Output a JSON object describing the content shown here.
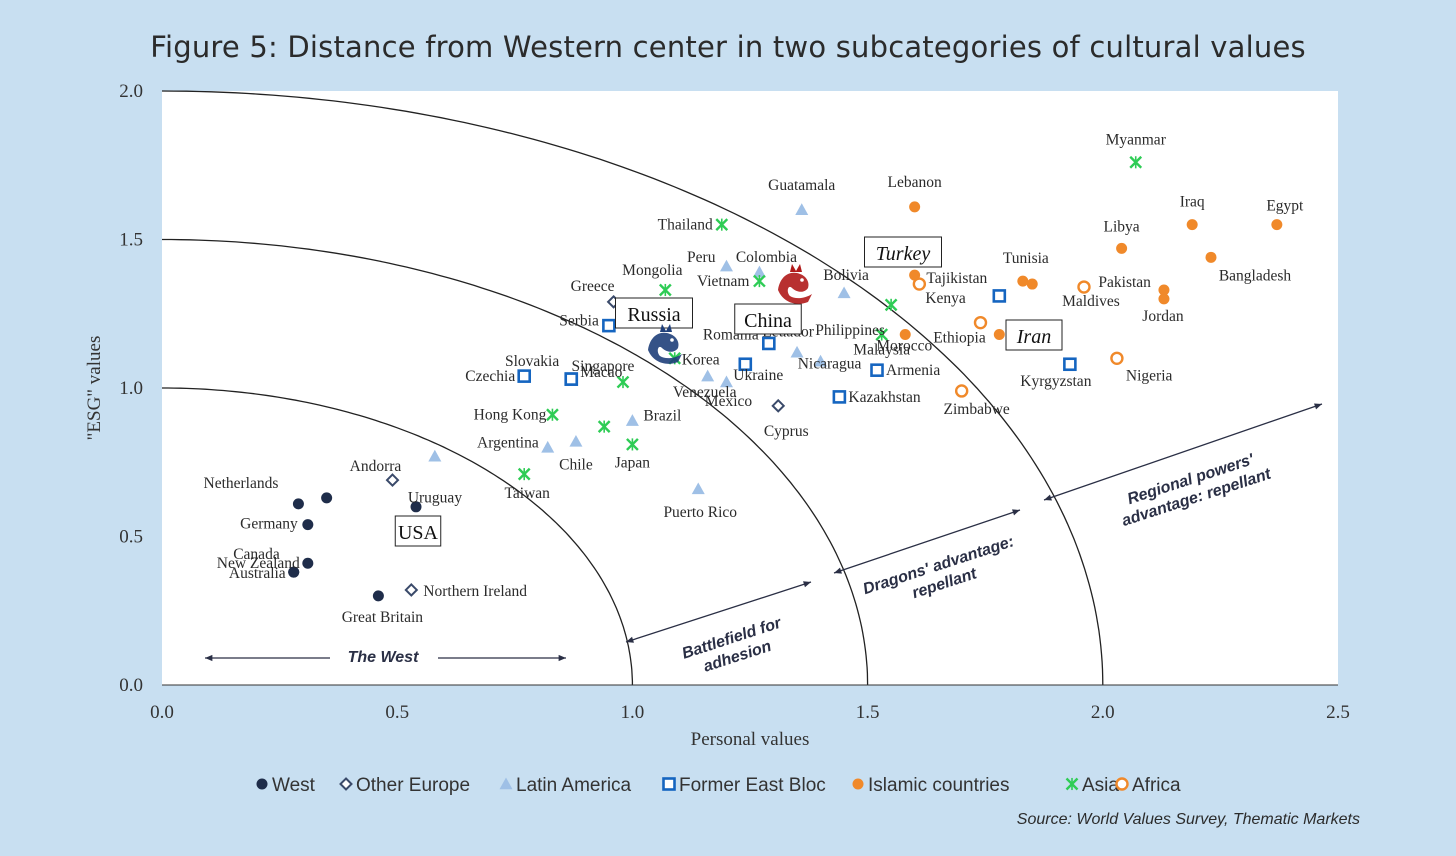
{
  "title": "Figure 5: Distance from Western center in two subcategories of cultural values",
  "source": "Source: World Values Survey, Thematic Markets",
  "colors": {
    "background": "#c8dff1",
    "plot_bg": "#ffffff",
    "west": "#1f2d4a",
    "other_europe": "#3a4a6a",
    "latin_america": "#9fc0e6",
    "former_east_bloc": "#1565c0",
    "islamic": "#f0892a",
    "asia": "#2ecc55",
    "africa": "#f0892a"
  },
  "legend": [
    {
      "key": "west",
      "label": "West",
      "marker": "filled-circle"
    },
    {
      "key": "other_europe",
      "label": "Other Europe",
      "marker": "open-diamond"
    },
    {
      "key": "latin_america",
      "label": "Latin America",
      "marker": "triangle"
    },
    {
      "key": "former_east_bloc",
      "label": "Former East Bloc",
      "marker": "open-square"
    },
    {
      "key": "islamic",
      "label": "Islamic countries",
      "marker": "filled-circle"
    },
    {
      "key": "asia",
      "label": "Asia",
      "marker": "asterisk"
    },
    {
      "key": "africa",
      "label": "Africa",
      "marker": "open-circle"
    }
  ],
  "chart_data": {
    "type": "scatter",
    "title": "Figure 5: Distance from Western center in two subcategories of cultural values",
    "xlabel": "Personal values",
    "ylabel": "\"ESG\" values",
    "xlim": [
      0,
      2.5
    ],
    "ylim": [
      0,
      2.0
    ],
    "xticks": [
      "0.0",
      "0.5",
      "1.0",
      "1.5",
      "2.0",
      "2.5"
    ],
    "yticks": [
      "0.0",
      "0.5",
      "1.0",
      "1.5",
      "2.0"
    ],
    "grid": false,
    "legend_position": "bottom",
    "arcs": [
      {
        "radius": 1.0
      },
      {
        "radius": 1.5
      },
      {
        "radius": 2.0
      }
    ],
    "series": [
      {
        "name": "West",
        "key": "west",
        "points": [
          {
            "label": "Netherlands",
            "x": 0.29,
            "y": 0.61
          },
          {
            "label": "",
            "x": 0.35,
            "y": 0.63
          },
          {
            "label": "Germany",
            "x": 0.31,
            "y": 0.54
          },
          {
            "label": "New Zealand",
            "x": 0.31,
            "y": 0.41
          },
          {
            "label": "Canada",
            "x": 0.28,
            "y": 0.38
          },
          {
            "label": "Australia",
            "x": 0.28,
            "y": 0.38
          },
          {
            "label": "USA",
            "x": 0.54,
            "y": 0.6
          },
          {
            "label": "Great Britain",
            "x": 0.46,
            "y": 0.3
          }
        ]
      },
      {
        "name": "Other Europe",
        "key": "other_europe",
        "points": [
          {
            "label": "Andorra",
            "x": 0.49,
            "y": 0.69
          },
          {
            "label": "Northern Ireland",
            "x": 0.53,
            "y": 0.32
          },
          {
            "label": "Greece",
            "x": 0.96,
            "y": 1.29
          },
          {
            "label": "Cyprus",
            "x": 1.31,
            "y": 0.94
          }
        ]
      },
      {
        "name": "Latin America",
        "key": "latin_america",
        "points": [
          {
            "label": "Uruguay",
            "x": 0.58,
            "y": 0.77
          },
          {
            "label": "Argentina",
            "x": 0.82,
            "y": 0.8
          },
          {
            "label": "Chile",
            "x": 0.88,
            "y": 0.82
          },
          {
            "label": "Brazil",
            "x": 1.0,
            "y": 0.89
          },
          {
            "label": "Puerto Rico",
            "x": 1.14,
            "y": 0.66
          },
          {
            "label": "Venezuela",
            "x": 1.16,
            "y": 1.04
          },
          {
            "label": "Mexico",
            "x": 1.2,
            "y": 1.02
          },
          {
            "label": "Peru",
            "x": 1.2,
            "y": 1.41
          },
          {
            "label": "Colombia",
            "x": 1.27,
            "y": 1.39
          },
          {
            "label": "Guatamala",
            "x": 1.36,
            "y": 1.6
          },
          {
            "label": "Bolivia",
            "x": 1.45,
            "y": 1.32
          },
          {
            "label": "Ecuador",
            "x": 1.35,
            "y": 1.12
          },
          {
            "label": "Nicaragua",
            "x": 1.4,
            "y": 1.09
          }
        ]
      },
      {
        "name": "Former East Bloc",
        "key": "former_east_bloc",
        "points": [
          {
            "label": "Czechia",
            "x": 0.77,
            "y": 1.04
          },
          {
            "label": "Slovakia",
            "x": 0.87,
            "y": 1.03
          },
          {
            "label": "Serbia",
            "x": 0.95,
            "y": 1.21
          },
          {
            "label": "Macao",
            "x": 0.87,
            "y": 1.03
          },
          {
            "label": "Ukraine",
            "x": 1.24,
            "y": 1.08
          },
          {
            "label": "Romania",
            "x": 1.29,
            "y": 1.15
          },
          {
            "label": "Armenia",
            "x": 1.52,
            "y": 1.06
          },
          {
            "label": "Kazakhstan",
            "x": 1.44,
            "y": 0.97
          },
          {
            "label": "Tajikistan",
            "x": 1.78,
            "y": 1.31
          },
          {
            "label": "Kyrgyzstan",
            "x": 1.93,
            "y": 1.08
          }
        ]
      },
      {
        "name": "Islamic countries",
        "key": "islamic",
        "points": [
          {
            "label": "Lebanon",
            "x": 1.6,
            "y": 1.61
          },
          {
            "label": "Turkey",
            "x": 1.6,
            "y": 1.38
          },
          {
            "label": "Morocco",
            "x": 1.58,
            "y": 1.18
          },
          {
            "label": "Iran",
            "x": 1.78,
            "y": 1.18
          },
          {
            "label": "Tunisia",
            "x": 1.83,
            "y": 1.36
          },
          {
            "label": "",
            "x": 1.85,
            "y": 1.35
          },
          {
            "label": "Libya",
            "x": 2.04,
            "y": 1.47
          },
          {
            "label": "Iraq",
            "x": 2.19,
            "y": 1.55
          },
          {
            "label": "Egypt",
            "x": 2.37,
            "y": 1.55
          },
          {
            "label": "Bangladesh",
            "x": 2.23,
            "y": 1.44
          },
          {
            "label": "Pakistan",
            "x": 2.13,
            "y": 1.33
          },
          {
            "label": "Jordan",
            "x": 2.13,
            "y": 1.3
          }
        ]
      },
      {
        "name": "Asia",
        "key": "asia",
        "points": [
          {
            "label": "Myanmar",
            "x": 2.07,
            "y": 1.76
          },
          {
            "label": "Thailand",
            "x": 1.19,
            "y": 1.55
          },
          {
            "label": "Mongolia",
            "x": 1.07,
            "y": 1.33
          },
          {
            "label": "Vietnam",
            "x": 1.27,
            "y": 1.36
          },
          {
            "label": "Korea",
            "x": 1.09,
            "y": 1.1
          },
          {
            "label": "Philippines",
            "x": 1.55,
            "y": 1.28
          },
          {
            "label": "Malaysia",
            "x": 1.53,
            "y": 1.18
          },
          {
            "label": "Singapore",
            "x": 0.98,
            "y": 1.02
          },
          {
            "label": "Hong Kong",
            "x": 0.83,
            "y": 0.91
          },
          {
            "label": "Japan",
            "x": 1.0,
            "y": 0.81
          },
          {
            "label": "",
            "x": 0.94,
            "y": 0.87
          },
          {
            "label": "Taiwan",
            "x": 0.77,
            "y": 0.71
          }
        ]
      },
      {
        "name": "Africa",
        "key": "africa",
        "points": [
          {
            "label": "Kenya",
            "x": 1.61,
            "y": 1.35
          },
          {
            "label": "Ethiopia",
            "x": 1.74,
            "y": 1.22
          },
          {
            "label": "Maldives",
            "x": 1.96,
            "y": 1.34
          },
          {
            "label": "Nigeria",
            "x": 2.03,
            "y": 1.1
          },
          {
            "label": "Zimbabwe",
            "x": 1.7,
            "y": 0.99
          }
        ]
      }
    ],
    "annotations": [
      {
        "text": "The West"
      },
      {
        "text": "Battlefield for adhesion"
      },
      {
        "text": "Dragons' advantage: repellant"
      },
      {
        "text": "Regional powers' advantage: repellant"
      }
    ],
    "boxed_labels": [
      "USA",
      "Russia",
      "China",
      "Turkey",
      "Iran"
    ]
  }
}
